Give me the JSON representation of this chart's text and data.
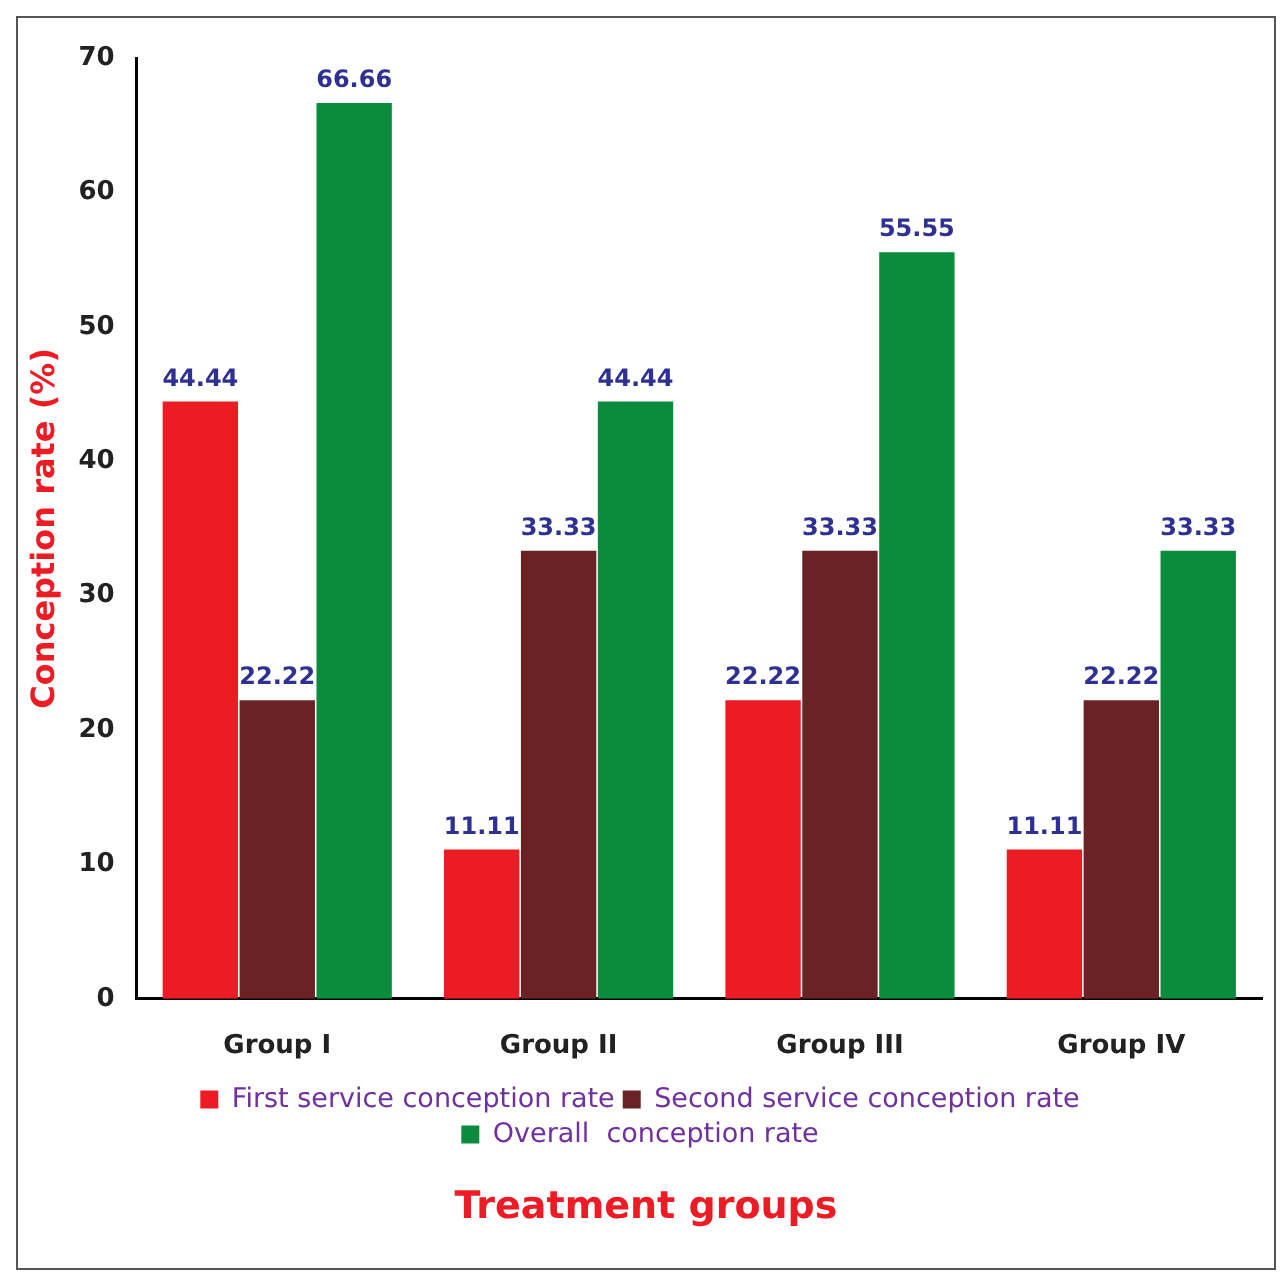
{
  "chart_data": {
    "type": "bar",
    "xlabel": "Treatment groups",
    "ylabel": "Conception rate (%)",
    "categories": [
      "Group I",
      "Group II",
      "Group III",
      "Group IV"
    ],
    "series": [
      {
        "name": "First service conception rate",
        "color": "#ed1c24",
        "values": [
          44.44,
          11.11,
          22.22,
          11.11
        ]
      },
      {
        "name": "Second service conception rate",
        "color": "#6b2224",
        "values": [
          22.22,
          33.33,
          33.33,
          22.22
        ]
      },
      {
        "name": "Overall  conception rate",
        "color": "#0b8c3c",
        "values": [
          66.66,
          44.44,
          55.55,
          33.33
        ]
      }
    ],
    "ylim": [
      0,
      70
    ],
    "yticks": [
      0,
      10,
      20,
      30,
      40,
      50,
      60,
      70
    ],
    "grid": false,
    "legend": "bottom",
    "data_labels": true
  }
}
